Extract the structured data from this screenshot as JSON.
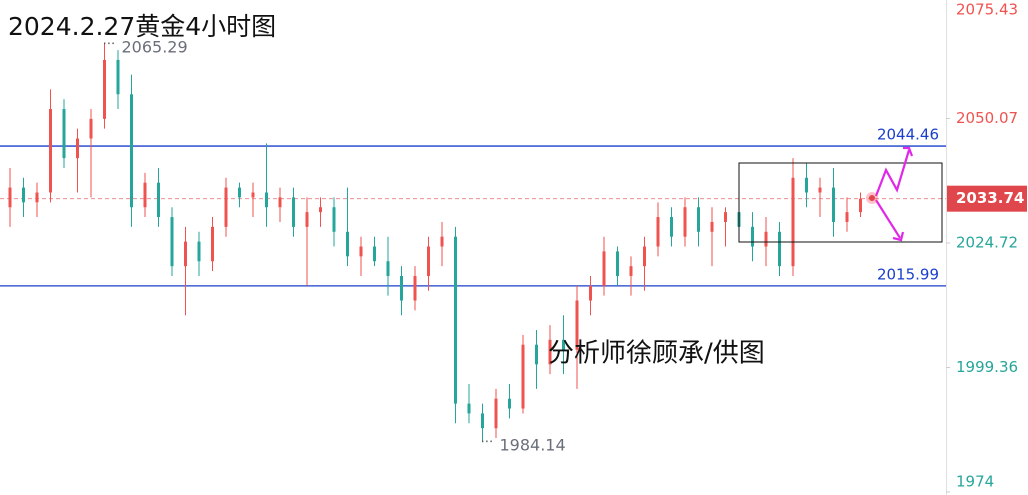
{
  "chart_data": {
    "type": "candlestick",
    "title": "2024.2.27黄金4小时图",
    "watermark": "分析师徐顾承/供图",
    "up_color": "#ef5350",
    "down_color": "#26a69a",
    "ylim": [
      1974.0,
      2075.43
    ],
    "yticks": [
      1974.0,
      1999.36,
      2024.72,
      2050.07,
      2075.43
    ],
    "price_lines": [
      {
        "value": 2044.46,
        "color": "#1a3fcc"
      },
      {
        "value": 2015.99,
        "color": "#1a3fcc"
      }
    ],
    "last_price": {
      "value": 2033.74,
      "color": "#e0474c"
    },
    "annotations": {
      "high": 2065.29,
      "low": 1984.14
    },
    "candles": [
      [
        2032,
        2040,
        2028,
        2036
      ],
      [
        2036,
        2038,
        2030,
        2033
      ],
      [
        2033,
        2037,
        2030,
        2035
      ],
      [
        2035,
        2056,
        2033,
        2052
      ],
      [
        2052,
        2054,
        2040,
        2042
      ],
      [
        2042,
        2048,
        2035,
        2046
      ],
      [
        2046,
        2052,
        2034,
        2050
      ],
      [
        2050,
        2065.29,
        2048,
        2062
      ],
      [
        2062,
        2064,
        2052,
        2055
      ],
      [
        2055,
        2059,
        2028,
        2032
      ],
      [
        2032,
        2039,
        2030,
        2037
      ],
      [
        2037,
        2040,
        2028,
        2030
      ],
      [
        2030,
        2032,
        2018,
        2020
      ],
      [
        2020,
        2028,
        2010,
        2025
      ],
      [
        2025,
        2027,
        2018,
        2021
      ],
      [
        2021,
        2030,
        2019,
        2028
      ],
      [
        2028,
        2038,
        2026,
        2036
      ],
      [
        2036,
        2037,
        2032,
        2034
      ],
      [
        2034,
        2037,
        2030,
        2035
      ],
      [
        2035,
        2045,
        2028,
        2032
      ],
      [
        2032,
        2036,
        2029,
        2034
      ],
      [
        2034,
        2036,
        2026,
        2028
      ],
      [
        2028,
        2034,
        2016,
        2031
      ],
      [
        2031,
        2034,
        2028,
        2032
      ],
      [
        2032,
        2034,
        2024,
        2027
      ],
      [
        2027,
        2036,
        2020,
        2022
      ],
      [
        2022,
        2026,
        2018,
        2024
      ],
      [
        2024,
        2026,
        2020,
        2021
      ],
      [
        2021,
        2026,
        2014,
        2018
      ],
      [
        2018,
        2020,
        2010,
        2013
      ],
      [
        2013,
        2020,
        2011,
        2018
      ],
      [
        2018,
        2026,
        2015,
        2024
      ],
      [
        2024,
        2029,
        2020,
        2026
      ],
      [
        2026,
        2028,
        1988,
        1992
      ],
      [
        1992,
        1996,
        1988,
        1990
      ],
      [
        1990,
        1992,
        1984.14,
        1987
      ],
      [
        1987,
        1995,
        1985,
        1993
      ],
      [
        1993,
        1996,
        1989,
        1991
      ],
      [
        1991,
        2006,
        1990,
        2004
      ],
      [
        2004,
        2007,
        1995,
        2000
      ],
      [
        2000,
        2008,
        1998,
        2005
      ],
      [
        2005,
        2010,
        1998,
        2003
      ],
      [
        2003,
        2016,
        1995,
        2013
      ],
      [
        2013,
        2018,
        2010,
        2016
      ],
      [
        2016,
        2026,
        2014,
        2023
      ],
      [
        2023,
        2024,
        2016,
        2018
      ],
      [
        2018,
        2022,
        2014,
        2020
      ],
      [
        2020,
        2026,
        2015,
        2024
      ],
      [
        2024,
        2033,
        2022,
        2030
      ],
      [
        2030,
        2032,
        2024,
        2026
      ],
      [
        2026,
        2034,
        2024,
        2032
      ],
      [
        2032,
        2034,
        2024,
        2027
      ],
      [
        2027,
        2032,
        2020,
        2029
      ],
      [
        2029,
        2032,
        2024,
        2031
      ],
      [
        2031,
        2037,
        2026,
        2028
      ],
      [
        2028,
        2031,
        2021,
        2024
      ],
      [
        2024,
        2030,
        2020,
        2027
      ],
      [
        2027,
        2029,
        2018,
        2020
      ],
      [
        2020,
        2042,
        2018,
        2038
      ],
      [
        2038,
        2041,
        2032,
        2035
      ],
      [
        2035,
        2038,
        2030,
        2036
      ],
      [
        2036,
        2040,
        2026,
        2029
      ],
      [
        2029,
        2034,
        2027,
        2031
      ],
      [
        2031,
        2035,
        2030,
        2033.74
      ]
    ]
  }
}
